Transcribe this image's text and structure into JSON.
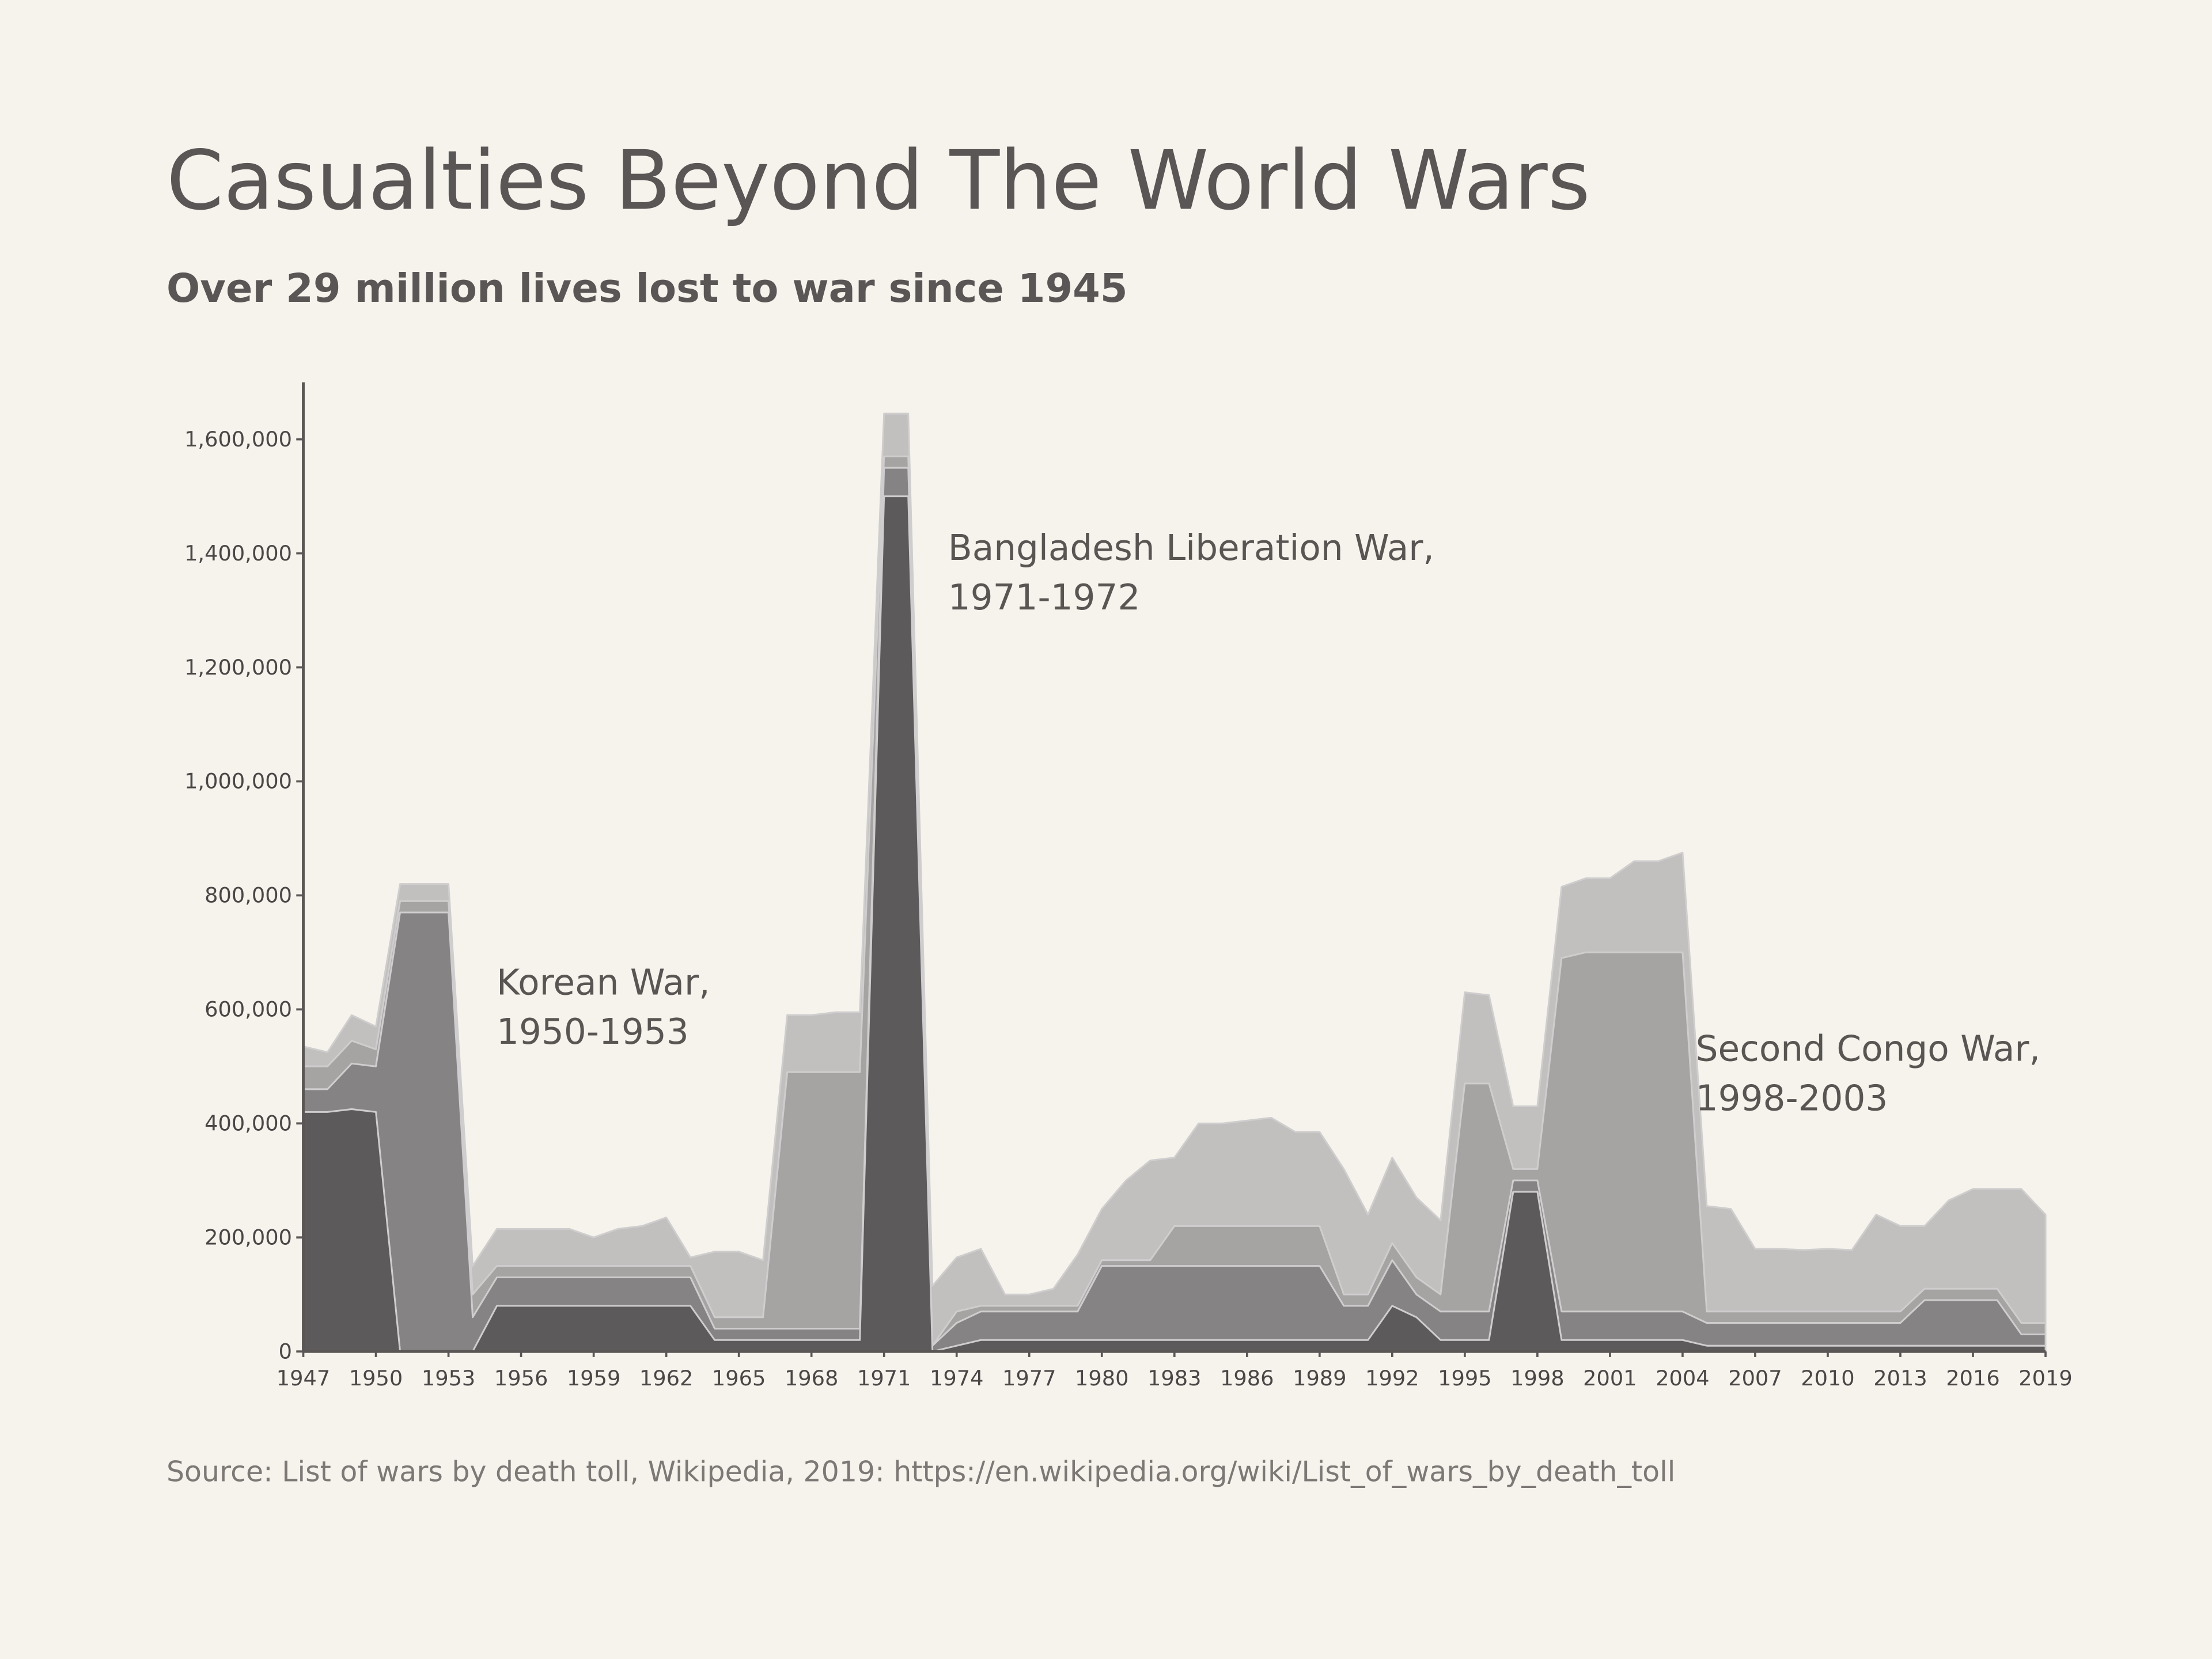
{
  "chart_data": {
    "type": "stacked-area",
    "title": "Casualties Beyond The World Wars",
    "subtitle": "Over 29 million lives lost to war since 1945",
    "source": "Source: List of wars by death toll, Wikipedia, 2019: https://en.wikipedia.org/wiki/List_of_wars_by_death_toll",
    "x": [
      1947,
      1948,
      1949,
      1950,
      1951,
      1952,
      1953,
      1954,
      1955,
      1956,
      1957,
      1958,
      1959,
      1960,
      1961,
      1962,
      1963,
      1964,
      1965,
      1966,
      1967,
      1968,
      1969,
      1970,
      1971,
      1972,
      1973,
      1974,
      1975,
      1976,
      1977,
      1978,
      1979,
      1980,
      1981,
      1982,
      1983,
      1984,
      1985,
      1986,
      1987,
      1988,
      1989,
      1990,
      1991,
      1992,
      1993,
      1994,
      1995,
      1996,
      1997,
      1998,
      1999,
      2000,
      2001,
      2002,
      2003,
      2004,
      2005,
      2006,
      2007,
      2008,
      2009,
      2010,
      2011,
      2012,
      2013,
      2014,
      2015,
      2016,
      2017,
      2018,
      2019
    ],
    "xlim": [
      1947,
      2019
    ],
    "xticks": [
      1947,
      1950,
      1953,
      1956,
      1959,
      1962,
      1965,
      1968,
      1971,
      1974,
      1977,
      1980,
      1983,
      1986,
      1989,
      1992,
      1995,
      1998,
      2001,
      2004,
      2007,
      2010,
      2013,
      2016,
      2019
    ],
    "ylim": [
      0,
      1700000
    ],
    "yticks": [
      0,
      {
        "value": 200000,
        "label": "200,000"
      },
      {
        "value": 400000,
        "label": "400,000"
      },
      {
        "value": 600000,
        "label": "600,000"
      },
      {
        "value": 800000,
        "label": "800,000"
      },
      {
        "value": 1000000,
        "label": "1,000,000"
      },
      {
        "value": 1200000,
        "label": "1,200,000"
      },
      {
        "value": 1400000,
        "label": "1,400,000"
      },
      {
        "value": 1600000,
        "label": "1,600,000"
      }
    ],
    "series": [
      {
        "color": "#5c5a5a",
        "values": [
          420000,
          420000,
          425000,
          420000,
          0,
          0,
          0,
          0,
          80000,
          80000,
          80000,
          80000,
          80000,
          80000,
          80000,
          80000,
          80000,
          20000,
          20000,
          20000,
          20000,
          20000,
          20000,
          20000,
          1500000,
          1500000,
          0,
          10000,
          20000,
          20000,
          20000,
          20000,
          20000,
          20000,
          20000,
          20000,
          20000,
          20000,
          20000,
          20000,
          20000,
          20000,
          20000,
          20000,
          20000,
          80000,
          60000,
          20000,
          20000,
          20000,
          280000,
          280000,
          20000,
          20000,
          20000,
          20000,
          20000,
          20000,
          10000,
          10000,
          10000,
          10000,
          10000,
          10000,
          10000,
          10000,
          10000,
          10000,
          10000,
          10000,
          10000,
          10000,
          10000
        ]
      },
      {
        "color": "#858383",
        "values": [
          40000,
          40000,
          80000,
          80000,
          770000,
          770000,
          770000,
          60000,
          50000,
          50000,
          50000,
          50000,
          50000,
          50000,
          50000,
          50000,
          50000,
          20000,
          20000,
          20000,
          20000,
          20000,
          20000,
          20000,
          50000,
          50000,
          10000,
          40000,
          50000,
          50000,
          50000,
          50000,
          50000,
          130000,
          130000,
          130000,
          130000,
          130000,
          130000,
          130000,
          130000,
          130000,
          130000,
          60000,
          60000,
          80000,
          40000,
          50000,
          50000,
          50000,
          20000,
          20000,
          50000,
          50000,
          50000,
          50000,
          50000,
          50000,
          40000,
          40000,
          40000,
          40000,
          40000,
          40000,
          40000,
          40000,
          40000,
          80000,
          80000,
          80000,
          80000,
          20000,
          20000
        ]
      },
      {
        "color": "#a6a4a3",
        "values": [
          40000,
          40000,
          40000,
          30000,
          20000,
          20000,
          20000,
          40000,
          20000,
          20000,
          20000,
          20000,
          20000,
          20000,
          20000,
          20000,
          20000,
          20000,
          20000,
          20000,
          450000,
          450000,
          450000,
          450000,
          20000,
          20000,
          0,
          20000,
          10000,
          10000,
          10000,
          10000,
          10000,
          10000,
          10000,
          10000,
          70000,
          70000,
          70000,
          70000,
          70000,
          70000,
          70000,
          20000,
          20000,
          30000,
          30000,
          30000,
          400000,
          400000,
          20000,
          20000,
          620000,
          630000,
          630000,
          630000,
          630000,
          630000,
          20000,
          20000,
          20000,
          20000,
          20000,
          20000,
          20000,
          20000,
          20000,
          20000,
          20000,
          20000,
          20000,
          20000,
          20000
        ]
      },
      {
        "color": "#c2bfbf",
        "values": [
          35000,
          25000,
          45000,
          40000,
          30000,
          30000,
          30000,
          50000,
          65000,
          65000,
          65000,
          65000,
          50000,
          65000,
          70000,
          85000,
          15000,
          115000,
          115000,
          100000,
          100000,
          100000,
          105000,
          105000,
          75000,
          75000,
          105000,
          95000,
          100000,
          20000,
          20000,
          30000,
          90000,
          90000,
          140000,
          175000,
          120000,
          180000,
          180000,
          185000,
          190000,
          165000,
          165000,
          220000,
          140000,
          150000,
          140000,
          130000,
          160000,
          155000,
          110000,
          110000,
          125000,
          130000,
          130000,
          160000,
          160000,
          175000,
          185000,
          180000,
          110000,
          110000,
          108000,
          110000,
          108000,
          170000,
          150000,
          110000,
          155000,
          175000,
          175000,
          235000,
          190000
        ]
      }
    ],
    "annotations": [
      {
        "lines": [
          "Korean War,",
          "1950-1953"
        ]
      },
      {
        "lines": [
          "Bangladesh Liberation War,",
          "1971-1972"
        ]
      },
      {
        "lines": [
          "Second Congo War,",
          "1998-2003"
        ]
      }
    ]
  }
}
